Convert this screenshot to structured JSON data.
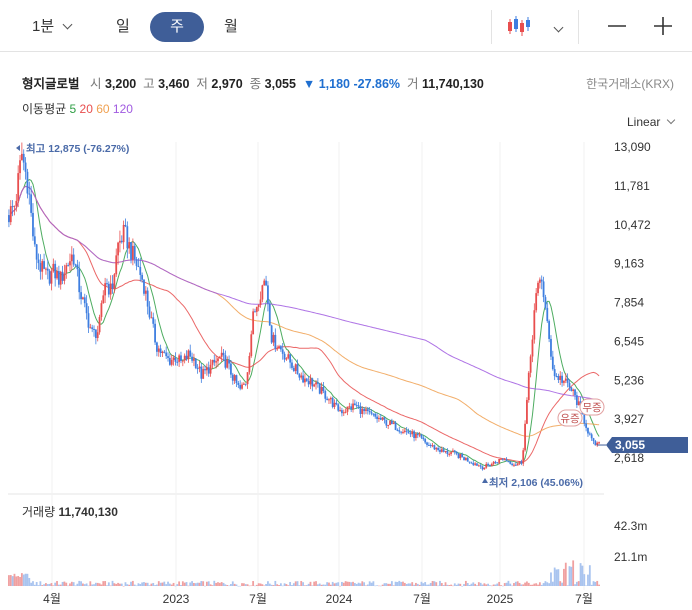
{
  "toolbar": {
    "timeframes": [
      "1분",
      "일",
      "주",
      "월"
    ],
    "active": "주"
  },
  "stock": {
    "name": "형지글로벌",
    "open_label": "시",
    "open": "3,200",
    "high_label": "고",
    "high": "3,460",
    "low_label": "저",
    "low": "2,970",
    "close_label": "종",
    "close": "3,055",
    "change": "▼ 1,180 -27.86%",
    "volume_label": "거",
    "volume": "11,740,130",
    "exchange": "한국거래소(KRX)"
  },
  "ma_legend": {
    "label": "이동평균",
    "items": [
      {
        "period": "5",
        "color": "#2e9e44"
      },
      {
        "period": "20",
        "color": "#e84e4e"
      },
      {
        "period": "60",
        "color": "#f0a050"
      },
      {
        "period": "120",
        "color": "#a05ae0"
      }
    ]
  },
  "scale_mode": "Linear",
  "chart_data": {
    "type": "candlestick",
    "x_ticks": [
      "4월",
      "2023",
      "7월",
      "2024",
      "7월",
      "2025",
      "7월"
    ],
    "y_ticks": [
      "13,090",
      "11,781",
      "10,472",
      "9,163",
      "7,854",
      "6,545",
      "5,236",
      "3,927",
      "2,618"
    ],
    "ylim": [
      2100,
      13300
    ],
    "current_price": 3055,
    "current_price_label": "3,055",
    "high_annotation": "최고 12,875 (-76.27%)",
    "high_value": 12875,
    "low_annotation": "최저 2,106 (45.06%)",
    "low_value": 2106,
    "event_tags": [
      "유증",
      "무증"
    ],
    "price_path": [
      10800,
      11200,
      12875,
      11800,
      9600,
      9000,
      8700,
      8900,
      8600,
      9100,
      9500,
      8300,
      7500,
      6800,
      6900,
      8600,
      8200,
      9800,
      10200,
      9600,
      9100,
      8500,
      7400,
      6400,
      6100,
      5900,
      6000,
      5800,
      6100,
      5900,
      5400,
      5600,
      5800,
      6000,
      5800,
      5300,
      4900,
      5200,
      7300,
      8100,
      8700,
      6600,
      6400,
      6100,
      5800,
      5500,
      5300,
      5200,
      5000,
      4800,
      4600,
      4300,
      4200,
      4300,
      4400,
      4200,
      4100,
      4000,
      3900,
      3800,
      3700,
      3600,
      3500,
      3400,
      3300,
      3100,
      3000,
      2900,
      2800,
      2800,
      2700,
      2600,
      2500,
      2400,
      2300,
      2400,
      2500,
      2600,
      2500,
      2400,
      2500,
      5200,
      7800,
      8800,
      6900,
      5400,
      5300,
      5100,
      4800,
      4300,
      3700,
      3100,
      3055
    ],
    "volume": {
      "label": "거래량",
      "value": "11,740,130",
      "y_ticks": [
        "42.3m",
        "21.1m"
      ],
      "ymax": 45
    }
  }
}
